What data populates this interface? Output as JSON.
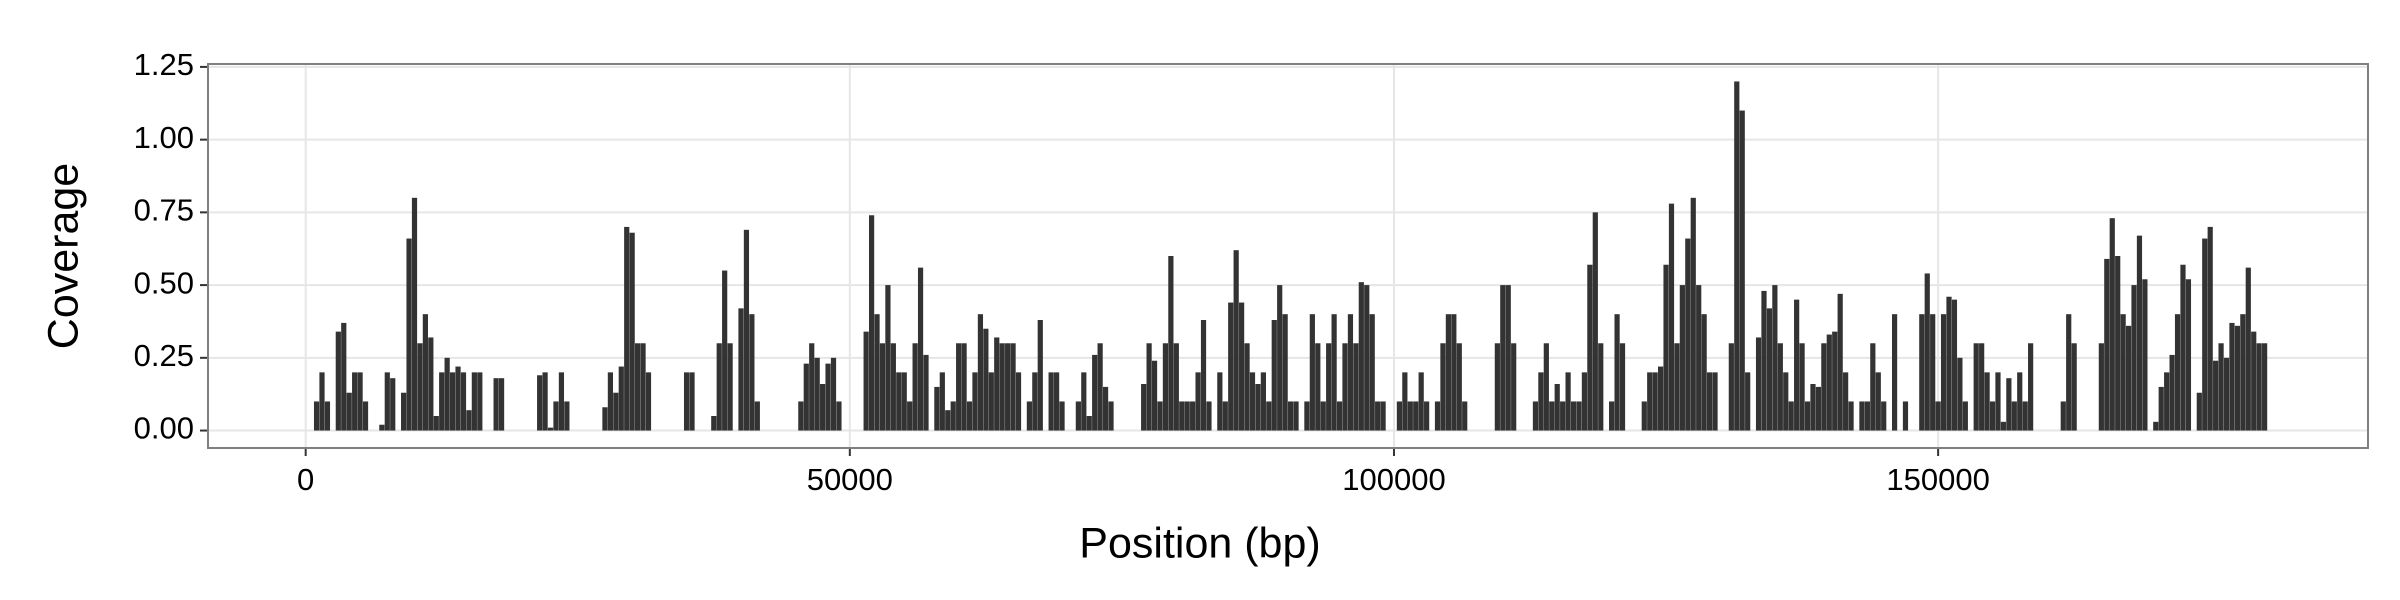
{
  "chart_data": {
    "type": "bar",
    "xlabel": "Position (bp)",
    "ylabel": "Coverage",
    "color": "#333333",
    "grid": true,
    "xlim": [
      -8975,
      189500
    ],
    "ylim": [
      -0.06,
      1.26
    ],
    "xticks": [
      0,
      50000,
      100000,
      150000
    ],
    "yticks": [
      {
        "value": 0,
        "label": "0.00"
      },
      {
        "value": 0.25,
        "label": "0.25"
      },
      {
        "value": 0.5,
        "label": "0.50"
      },
      {
        "value": 0.75,
        "label": "0.75"
      },
      {
        "value": 1,
        "label": "1.00"
      },
      {
        "value": 1.25,
        "label": "1.25"
      }
    ],
    "x": [
      1000,
      1500,
      2000,
      3000,
      3500,
      4000,
      4500,
      5000,
      5500,
      7000,
      7500,
      8000,
      9000,
      9500,
      10000,
      10500,
      11000,
      11500,
      12000,
      12500,
      13000,
      13500,
      14000,
      14500,
      15000,
      15500,
      16000,
      17500,
      18000,
      21500,
      22000,
      22500,
      23000,
      23500,
      24000,
      27500,
      28000,
      28500,
      29000,
      29500,
      30000,
      30500,
      31000,
      31500,
      35000,
      35500,
      37500,
      38000,
      38500,
      39000,
      40000,
      40500,
      41000,
      41500,
      45500,
      46000,
      46500,
      47000,
      47500,
      48000,
      48500,
      49000,
      51500,
      52000,
      52500,
      53000,
      53500,
      54000,
      54500,
      55000,
      55500,
      56000,
      56500,
      57000,
      58000,
      58500,
      59000,
      59500,
      60000,
      60500,
      61000,
      61500,
      62000,
      62500,
      63000,
      63500,
      64000,
      64500,
      65000,
      65500,
      66500,
      67000,
      67500,
      68500,
      69000,
      69500,
      71000,
      71500,
      72000,
      72500,
      73000,
      73500,
      74000,
      77000,
      77500,
      78000,
      78500,
      79000,
      79500,
      80000,
      80500,
      81000,
      81500,
      82000,
      82500,
      83000,
      84000,
      84500,
      85000,
      85500,
      86000,
      86500,
      87000,
      87500,
      88000,
      88500,
      89000,
      89500,
      90000,
      90500,
      91000,
      92000,
      92500,
      93000,
      93500,
      94000,
      94500,
      95000,
      95500,
      96000,
      96500,
      97000,
      97500,
      98000,
      98500,
      99000,
      100500,
      101000,
      101500,
      102000,
      102500,
      103000,
      104000,
      104500,
      105000,
      105500,
      106000,
      106500,
      109500,
      110000,
      110500,
      111000,
      113000,
      113500,
      114000,
      114500,
      115000,
      115500,
      116000,
      116500,
      117000,
      117500,
      118000,
      118500,
      119000,
      120000,
      120500,
      121000,
      123000,
      123500,
      124000,
      124500,
      125000,
      125500,
      126000,
      126500,
      127000,
      127500,
      128000,
      128500,
      129000,
      129500,
      131000,
      131500,
      132000,
      132500,
      133500,
      134000,
      134500,
      135000,
      135500,
      136000,
      136500,
      137000,
      137500,
      138000,
      138500,
      139000,
      139500,
      140000,
      140500,
      141000,
      141500,
      142000,
      143000,
      143500,
      144000,
      144500,
      145000,
      146000,
      147000,
      148500,
      149000,
      149500,
      150000,
      150500,
      151000,
      151500,
      152000,
      152500,
      153500,
      154000,
      154500,
      155000,
      155500,
      156000,
      156500,
      157000,
      157500,
      158000,
      158500,
      161500,
      162000,
      162500,
      165000,
      165500,
      166000,
      166500,
      167000,
      167500,
      168000,
      168500,
      169000,
      170000,
      170500,
      171000,
      171500,
      172000,
      172500,
      173000,
      174000,
      174500,
      175000,
      175500,
      176000,
      176500,
      177000,
      177500,
      178000,
      178500,
      179000,
      179500,
      180000
    ],
    "values": [
      0.1,
      0.2,
      0.1,
      0.34,
      0.37,
      0.13,
      0.2,
      0.2,
      0.1,
      0.02,
      0.2,
      0.18,
      0.13,
      0.66,
      0.8,
      0.3,
      0.4,
      0.32,
      0.05,
      0.2,
      0.25,
      0.2,
      0.22,
      0.2,
      0.07,
      0.2,
      0.2,
      0.18,
      0.18,
      0.19,
      0.2,
      0.01,
      0.1,
      0.2,
      0.1,
      0.08,
      0.2,
      0.13,
      0.22,
      0.7,
      0.68,
      0.3,
      0.3,
      0.2,
      0.2,
      0.2,
      0.05,
      0.3,
      0.55,
      0.3,
      0.42,
      0.69,
      0.4,
      0.1,
      0.1,
      0.23,
      0.3,
      0.25,
      0.16,
      0.23,
      0.25,
      0.1,
      0.34,
      0.74,
      0.4,
      0.3,
      0.5,
      0.3,
      0.2,
      0.2,
      0.1,
      0.3,
      0.56,
      0.26,
      0.15,
      0.2,
      0.07,
      0.1,
      0.3,
      0.3,
      0.1,
      0.2,
      0.4,
      0.35,
      0.2,
      0.32,
      0.3,
      0.3,
      0.3,
      0.2,
      0.1,
      0.2,
      0.38,
      0.2,
      0.2,
      0.1,
      0.1,
      0.2,
      0.05,
      0.26,
      0.3,
      0.15,
      0.1,
      0.16,
      0.3,
      0.24,
      0.1,
      0.3,
      0.6,
      0.3,
      0.1,
      0.1,
      0.1,
      0.2,
      0.38,
      0.1,
      0.2,
      0.1,
      0.44,
      0.62,
      0.44,
      0.3,
      0.2,
      0.16,
      0.2,
      0.1,
      0.38,
      0.5,
      0.4,
      0.1,
      0.1,
      0.1,
      0.4,
      0.3,
      0.1,
      0.3,
      0.4,
      0.1,
      0.3,
      0.4,
      0.3,
      0.51,
      0.5,
      0.4,
      0.1,
      0.1,
      0.1,
      0.2,
      0.1,
      0.1,
      0.2,
      0.1,
      0.1,
      0.3,
      0.4,
      0.4,
      0.3,
      0.1,
      0.3,
      0.5,
      0.5,
      0.3,
      0.1,
      0.2,
      0.3,
      0.1,
      0.16,
      0.1,
      0.2,
      0.1,
      0.1,
      0.2,
      0.57,
      0.75,
      0.3,
      0.1,
      0.4,
      0.3,
      0.1,
      0.2,
      0.2,
      0.22,
      0.57,
      0.78,
      0.3,
      0.5,
      0.66,
      0.8,
      0.5,
      0.4,
      0.2,
      0.2,
      0.3,
      1.2,
      1.1,
      0.2,
      0.32,
      0.48,
      0.42,
      0.5,
      0.3,
      0.2,
      0.1,
      0.45,
      0.3,
      0.1,
      0.16,
      0.15,
      0.3,
      0.33,
      0.34,
      0.47,
      0.2,
      0.1,
      0.1,
      0.1,
      0.3,
      0.2,
      0.1,
      0.4,
      0.1,
      0.4,
      0.54,
      0.4,
      0.1,
      0.4,
      0.46,
      0.45,
      0.25,
      0.1,
      0.3,
      0.3,
      0.2,
      0.1,
      0.2,
      0.03,
      0.18,
      0.1,
      0.2,
      0.1,
      0.3,
      0.1,
      0.4,
      0.3,
      0.3,
      0.59,
      0.73,
      0.6,
      0.4,
      0.36,
      0.5,
      0.67,
      0.52,
      0.03,
      0.15,
      0.2,
      0.26,
      0.4,
      0.57,
      0.52,
      0.13,
      0.66,
      0.7,
      0.24,
      0.3,
      0.25,
      0.37,
      0.36,
      0.4,
      0.56,
      0.34,
      0.3,
      0.3
    ]
  }
}
